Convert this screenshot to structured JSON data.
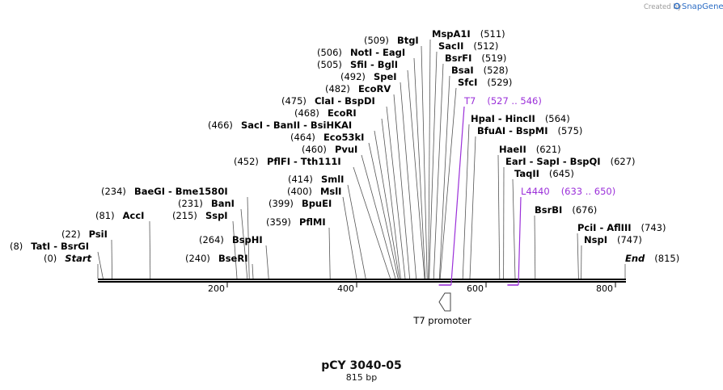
{
  "watermark": {
    "created_by": "Created by",
    "brand": "SnapGene"
  },
  "sequence": {
    "name": "pCY 3040-05",
    "length_label": "815 bp",
    "length": 815
  },
  "axis_ticks": [
    {
      "pos": 200,
      "label": "200"
    },
    {
      "pos": 400,
      "label": "400"
    },
    {
      "pos": 600,
      "label": "600"
    },
    {
      "pos": 800,
      "label": "800"
    }
  ],
  "sites": [
    {
      "id": "start",
      "text": "Start",
      "italic": true,
      "pos": "(0)",
      "bp": 0
    },
    {
      "id": "tati",
      "text": "TatI  -  BsrGI",
      "pos": "(8)",
      "bp": 8
    },
    {
      "id": "psii",
      "text": "PsiI",
      "pos": "(22)",
      "bp": 22
    },
    {
      "id": "acci",
      "text": "AccI",
      "pos": "(81)",
      "bp": 81
    },
    {
      "id": "baegi",
      "text": "BaeGI  -  Bme1580I",
      "pos": "(234)",
      "bp": 234
    },
    {
      "id": "bani",
      "text": "BanI",
      "pos": "(231)",
      "bp": 231
    },
    {
      "id": "sspi",
      "text": "SspI",
      "pos": "(215)",
      "bp": 215
    },
    {
      "id": "bsphi",
      "text": "BspHI",
      "pos": "(264)",
      "bp": 264
    },
    {
      "id": "bseri",
      "text": "BseRI",
      "pos": "(240)",
      "bp": 240
    },
    {
      "id": "pflmi",
      "text": "PflMI",
      "pos": "(359)",
      "bp": 359
    },
    {
      "id": "bspei",
      "text": "BpuEI",
      "pos": "(399)",
      "bp": 399
    },
    {
      "id": "msli",
      "text": "MslI",
      "pos": "(400)",
      "bp": 400
    },
    {
      "id": "smli",
      "text": "SmlI",
      "pos": "(414)",
      "bp": 414
    },
    {
      "id": "pflfi",
      "text": "PflFI  -  Tth111I",
      "pos": "(452)",
      "bp": 452
    },
    {
      "id": "pvui",
      "text": "PvuI",
      "pos": "(460)",
      "bp": 460
    },
    {
      "id": "eco53ki",
      "text": "Eco53kI",
      "pos": "(464)",
      "bp": 464
    },
    {
      "id": "saci",
      "text": "SacI  -  BanII  -  BsiHKAI",
      "pos": "(466)",
      "bp": 466
    },
    {
      "id": "ecori",
      "text": "EcoRI",
      "pos": "(468)",
      "bp": 468
    },
    {
      "id": "clai",
      "text": "ClaI  -  BspDI",
      "pos": "(475)",
      "bp": 475
    },
    {
      "id": "ecorv",
      "text": "EcoRV",
      "pos": "(482)",
      "bp": 482
    },
    {
      "id": "spei",
      "text": "SpeI",
      "pos": "(492)",
      "bp": 492
    },
    {
      "id": "sfii",
      "text": "SfiI  -  BglI",
      "pos": "(505)",
      "bp": 505
    },
    {
      "id": "noti",
      "text": "NotI  -  EagI",
      "pos": "(506)",
      "bp": 506
    },
    {
      "id": "btgi",
      "text": "BtgI",
      "pos": "(509)",
      "bp": 509
    },
    {
      "id": "mspa1i",
      "text": "MspA1I",
      "pos": "(511)",
      "bp": 511
    },
    {
      "id": "sacii",
      "text": "SacII",
      "pos": "(512)",
      "bp": 512
    },
    {
      "id": "bsrfi",
      "text": "BsrFI",
      "pos": "(519)",
      "bp": 519
    },
    {
      "id": "bsai",
      "text": "BsaI",
      "pos": "(528)",
      "bp": 528
    },
    {
      "id": "sfci",
      "text": "SfcI",
      "pos": "(529)",
      "bp": 529
    },
    {
      "id": "hpai",
      "text": "HpaI  -  HincII",
      "pos": "(564)",
      "bp": 564
    },
    {
      "id": "bfuai",
      "text": "BfuAI  -  BspMI",
      "pos": "(575)",
      "bp": 575
    },
    {
      "id": "haeii",
      "text": "HaeII",
      "pos": "(621)",
      "bp": 621
    },
    {
      "id": "eari",
      "text": "EarI  -  SapI  -  BspQI",
      "pos": "(627)",
      "bp": 627
    },
    {
      "id": "taqii",
      "text": "TaqII",
      "pos": "(645)",
      "bp": 645
    },
    {
      "id": "bsrbi",
      "text": "BsrBI",
      "pos": "(676)",
      "bp": 676
    },
    {
      "id": "pcii",
      "text": "PciI  -  AflIII",
      "pos": "(743)",
      "bp": 743
    },
    {
      "id": "nspi",
      "text": "NspI",
      "pos": "(747)",
      "bp": 747
    },
    {
      "id": "end",
      "text": "End",
      "italic": true,
      "pos": "(815)",
      "bp": 815
    }
  ],
  "primers": [
    {
      "id": "t7",
      "name": "T7",
      "range": "(527 .. 546)",
      "start": 527,
      "end": 546,
      "color": "#9b30d9"
    },
    {
      "id": "l4440",
      "name": "L4440",
      "range": "(633 .. 650)",
      "start": 633,
      "end": 650,
      "color": "#9b30d9"
    }
  ],
  "features": [
    {
      "id": "t7-promoter",
      "label": "T7 promoter",
      "start": 558,
      "end": 577,
      "direction": "reverse"
    }
  ]
}
